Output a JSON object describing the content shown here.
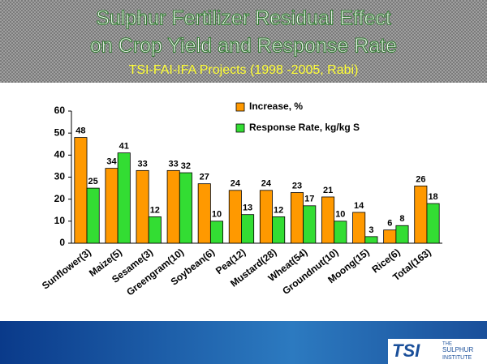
{
  "title": [
    "Sulphur Fertilizer Residual Effect",
    "on Crop Yield and Response Rate"
  ],
  "subtitle": "TSI-FAI-IFA Projects (1998 -2005, Rabi)",
  "logo": {
    "text": "TSI",
    "caption": [
      "THE",
      "SULPHUR",
      "INSTITUTE"
    ]
  },
  "chart_data": {
    "type": "bar",
    "categories": [
      "Sunflower(3)",
      "Maize(5)",
      "Sesame(3)",
      "Greengram(10)",
      "Soybean(6)",
      "Pea(12)",
      "Mustard(28)",
      "Wheat(54)",
      "Groundnut(10)",
      "Moong(15)",
      "Rice(6)",
      "Total(163)"
    ],
    "series": [
      {
        "name": "Increase, %",
        "color": "#ff9900",
        "values": [
          48,
          34,
          33,
          33,
          27,
          24,
          24,
          23,
          21,
          14,
          6,
          26
        ]
      },
      {
        "name": "Response Rate, kg/kg S",
        "color": "#33dd33",
        "values": [
          25,
          41,
          12,
          32,
          10,
          13,
          12,
          17,
          10,
          3,
          8,
          18
        ]
      }
    ],
    "ylim": [
      0,
      60
    ],
    "yticks": [
      0,
      10,
      20,
      30,
      40,
      50,
      60
    ],
    "grid": false,
    "legend": "top"
  }
}
